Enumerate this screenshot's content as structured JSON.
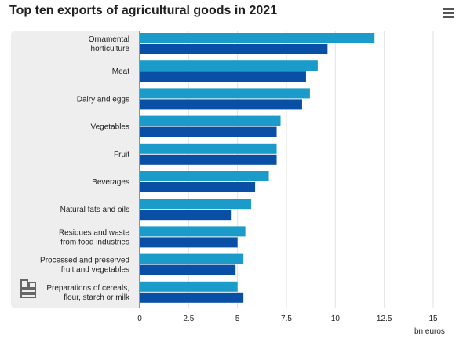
{
  "page": {
    "title": "Top ten exports of agricultural goods in 2021",
    "menu_icon": "hamburger-menu-icon",
    "logo_icon": "statistics-logo-icon"
  },
  "chart_data": {
    "type": "bar",
    "orientation": "horizontal",
    "title": "Top ten exports of agricultural goods in 2021",
    "xlabel": "bn euros",
    "ylabel": "",
    "xlim": [
      0,
      15
    ],
    "x_ticks": [
      "0",
      "2.5",
      "5",
      "7.5",
      "10",
      "12.5",
      "15"
    ],
    "grid": "vertical",
    "legend": "none",
    "categories": [
      [
        "Ornamental",
        "horticulture"
      ],
      [
        "Meat"
      ],
      [
        "Dairy and eggs"
      ],
      [
        "Vegetables"
      ],
      [
        "Fruit"
      ],
      [
        "Beverages"
      ],
      [
        "Natural fats and oils"
      ],
      [
        "Residues and waste",
        "from food industries"
      ],
      [
        "Processed and preserved",
        "fruit and vegetables"
      ],
      [
        "Preparations of cereals,",
        "flour, starch or milk"
      ]
    ],
    "series": [
      {
        "color": "#1a9bc9",
        "values": [
          12.0,
          9.1,
          8.7,
          7.2,
          7.0,
          6.6,
          5.7,
          5.4,
          5.3,
          5.0
        ]
      },
      {
        "color": "#0a4fa6",
        "values": [
          9.6,
          8.5,
          8.3,
          7.0,
          7.0,
          5.9,
          4.7,
          5.0,
          4.9,
          5.3
        ]
      }
    ]
  }
}
